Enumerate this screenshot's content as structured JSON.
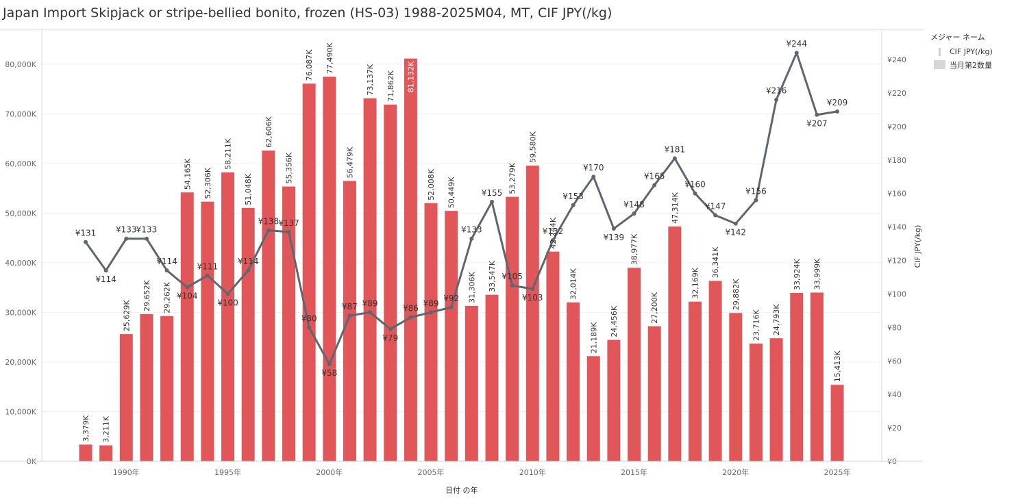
{
  "chart_data": {
    "type": "bar+line",
    "title": "Japan Import Skipjack or stripe-bellied bonito, frozen (HS-03) 1988-2025M04, MT, CIF JPY(/kg)",
    "xlabel": "日付 の年",
    "ylabel_left": "",
    "ylabel_right": "CIF JPY(/kg)",
    "x": [
      1988,
      1989,
      1990,
      1991,
      1992,
      1993,
      1994,
      1995,
      1996,
      1997,
      1998,
      1999,
      2000,
      2001,
      2002,
      2003,
      2004,
      2005,
      2006,
      2007,
      2008,
      2009,
      2010,
      2011,
      2012,
      2013,
      2014,
      2015,
      2016,
      2017,
      2018,
      2019,
      2020,
      2021,
      2022,
      2023,
      2024,
      2025
    ],
    "x_ticks": [
      "1990年",
      "1995年",
      "2000年",
      "2005年",
      "2010年",
      "2015年",
      "2020年",
      "2025年"
    ],
    "x_tick_years": [
      1990,
      1995,
      2000,
      2005,
      2010,
      2015,
      2020,
      2025
    ],
    "ylim_left": [
      0,
      87000
    ],
    "ylim_right": [
      0,
      258
    ],
    "y_ticks_left": [
      "0K",
      "10,000K",
      "20,000K",
      "30,000K",
      "40,000K",
      "50,000K",
      "60,000K",
      "70,000K",
      "80,000K"
    ],
    "y_ticks_left_values": [
      0,
      10000,
      20000,
      30000,
      40000,
      50000,
      60000,
      70000,
      80000
    ],
    "y_ticks_right": [
      "¥0",
      "¥20",
      "¥40",
      "¥60",
      "¥80",
      "¥100",
      "¥120",
      "¥140",
      "¥160",
      "¥180",
      "¥200",
      "¥220",
      "¥240"
    ],
    "y_ticks_right_values": [
      0,
      20,
      40,
      60,
      80,
      100,
      120,
      140,
      160,
      180,
      200,
      220,
      240
    ],
    "series": [
      {
        "name": "当月第2数量",
        "type": "bar",
        "color": "#e15759",
        "values": [
          3379,
          3211,
          25629,
          29652,
          29262,
          54165,
          52306,
          58211,
          51048,
          62606,
          55356,
          76087,
          77490,
          56479,
          73137,
          71862,
          81132,
          52008,
          50449,
          31306,
          33547,
          53279,
          59580,
          42244,
          32014,
          21189,
          24456,
          38977,
          27200,
          47314,
          32169,
          36341,
          29882,
          23716,
          24793,
          33924,
          33999,
          15413
        ],
        "labels": [
          "3,379K",
          "3,211K",
          "25,629K",
          "29,652K",
          "29,262K",
          "54,165K",
          "52,306K",
          "58,211K",
          "51,048K",
          "62,606K",
          "55,356K",
          "76,087K",
          "77,490K",
          "56,479K",
          "73,137K",
          "71,862K",
          "81,132K",
          "52,008K",
          "50,449K",
          "31,306K",
          "33,547K",
          "53,279K",
          "59,580K",
          "42,244K",
          "32,014K",
          "21,189K",
          "24,456K",
          "38,977K",
          "27,200K",
          "47,314K",
          "32,169K",
          "36,341K",
          "29,882K",
          "23,716K",
          "24,793K",
          "33,924K",
          "33,999K",
          "15,413K"
        ]
      },
      {
        "name": "CIF JPY(/kg)",
        "type": "line",
        "color": "#5f6670",
        "values": [
          131,
          114,
          133,
          133,
          114,
          104,
          111,
          100,
          114,
          138,
          137,
          80,
          58,
          87,
          89,
          79,
          86,
          89,
          92,
          133,
          155,
          105,
          103,
          132,
          153,
          170,
          139,
          148,
          165,
          181,
          160,
          147,
          142,
          156,
          216,
          244,
          207,
          209
        ],
        "labels": [
          "¥131",
          "¥114",
          "¥133",
          "¥133",
          "¥114",
          "¥104",
          "¥111",
          "¥100",
          "¥114",
          "¥138",
          "¥137",
          "¥80",
          "¥58",
          "¥87",
          "¥89",
          "¥79",
          "¥86",
          "¥89",
          "¥92",
          "¥133",
          "¥155",
          "¥105",
          "¥103",
          "¥132",
          "¥153",
          "¥170",
          "¥139",
          "¥148",
          "¥165",
          "¥181",
          "¥160",
          "¥147",
          "¥142",
          "¥156",
          "¥216",
          "¥244",
          "¥207",
          "¥209"
        ]
      }
    ],
    "legend": {
      "title": "メジャー ネーム",
      "placement": "right",
      "items": [
        "CIF JPY(/kg)",
        "当月第2数量"
      ]
    },
    "grid": true
  }
}
